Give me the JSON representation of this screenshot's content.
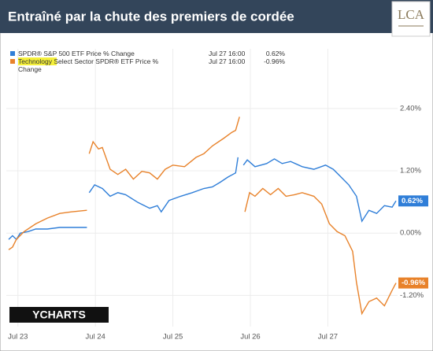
{
  "header": {
    "title": "Entraîné par la chute des premiers de cordée",
    "logo": "LCA"
  },
  "chart_data": {
    "type": "line",
    "watermark": "YCHARTS",
    "grid": true,
    "xlim": [
      -0.15,
      4.9
    ],
    "xticks": [
      {
        "value": 0,
        "label": "Jul 23"
      },
      {
        "value": 1,
        "label": "Jul 24"
      },
      {
        "value": 2,
        "label": "Jul 25"
      },
      {
        "value": 3,
        "label": "Jul 26"
      },
      {
        "value": 4,
        "label": "Jul 27"
      }
    ],
    "ylim": [
      -1.8,
      3.55
    ],
    "yticks": [
      {
        "value": -1.2,
        "label": "-1.20%"
      },
      {
        "value": 0,
        "label": "0.00%"
      },
      {
        "value": 1.2,
        "label": "1.20%"
      },
      {
        "value": 2.4,
        "label": "2.40%"
      }
    ],
    "series": [
      {
        "name": "SPDR® S&P 500 ETF Price % Change",
        "color": "#2f7ed8",
        "last_time": "Jul 27 16:00",
        "last_label": "0.62%",
        "last_value": 0.62,
        "x": [
          -0.12,
          -0.07,
          -0.02,
          0.03,
          0.13,
          0.23,
          0.38,
          0.54,
          0.69,
          0.89,
          null,
          0.92,
          0.99,
          1.09,
          1.19,
          1.29,
          1.39,
          1.55,
          1.7,
          1.8,
          1.85,
          1.95,
          2.1,
          2.25,
          2.4,
          2.51,
          2.61,
          2.71,
          2.81,
          2.84,
          null,
          2.91,
          2.96,
          3.06,
          3.21,
          3.31,
          3.41,
          3.52,
          3.67,
          3.82,
          3.97,
          4.07,
          4.17,
          4.27,
          4.37,
          4.44,
          4.53,
          4.63,
          4.73,
          4.83,
          4.88
        ],
        "values": [
          -0.12,
          -0.05,
          -0.12,
          0,
          0.03,
          0.08,
          0.08,
          0.11,
          0.11,
          0.11,
          null,
          0.78,
          0.93,
          0.86,
          0.71,
          0.78,
          0.74,
          0.59,
          0.48,
          0.53,
          0.41,
          0.63,
          0.71,
          0.78,
          0.86,
          0.89,
          0.98,
          1.08,
          1.16,
          1.46,
          null,
          1.31,
          1.41,
          1.28,
          1.34,
          1.43,
          1.34,
          1.38,
          1.28,
          1.23,
          1.31,
          1.23,
          1.08,
          0.93,
          0.71,
          0.23,
          0.44,
          0.38,
          0.53,
          0.5,
          0.62
        ]
      },
      {
        "name": "Technology Select Sector SPDR® ETF Price % Change",
        "color": "#e8822a",
        "last_time": "Jul 27 16:00",
        "last_label": "-0.96%",
        "last_value": -0.96,
        "x": [
          -0.12,
          -0.07,
          -0.02,
          0.08,
          0.23,
          0.38,
          0.54,
          0.69,
          0.89,
          null,
          0.92,
          0.97,
          1.04,
          1.09,
          1.19,
          1.29,
          1.39,
          1.49,
          1.6,
          1.7,
          1.8,
          1.9,
          2.0,
          2.15,
          2.3,
          2.4,
          2.51,
          2.66,
          2.76,
          2.81,
          2.86,
          null,
          2.93,
          2.99,
          3.06,
          3.16,
          3.26,
          3.36,
          3.46,
          3.57,
          3.67,
          3.82,
          3.92,
          4.02,
          4.12,
          4.22,
          4.32,
          4.37,
          4.44,
          4.53,
          4.63,
          4.73,
          4.83,
          4.88
        ],
        "values": [
          -0.32,
          -0.27,
          -0.12,
          0.03,
          0.18,
          0.29,
          0.38,
          0.41,
          0.44,
          null,
          1.53,
          1.76,
          1.62,
          1.65,
          1.23,
          1.13,
          1.23,
          1.04,
          1.19,
          1.16,
          1.04,
          1.23,
          1.31,
          1.28,
          1.46,
          1.53,
          1.68,
          1.83,
          1.94,
          1.98,
          2.24,
          null,
          0.41,
          0.78,
          0.71,
          0.86,
          0.74,
          0.86,
          0.71,
          0.74,
          0.78,
          0.71,
          0.56,
          0.18,
          0.03,
          -0.05,
          -0.35,
          -0.95,
          -1.55,
          -1.32,
          -1.25,
          -1.4,
          -1.1,
          -0.96
        ]
      }
    ]
  }
}
